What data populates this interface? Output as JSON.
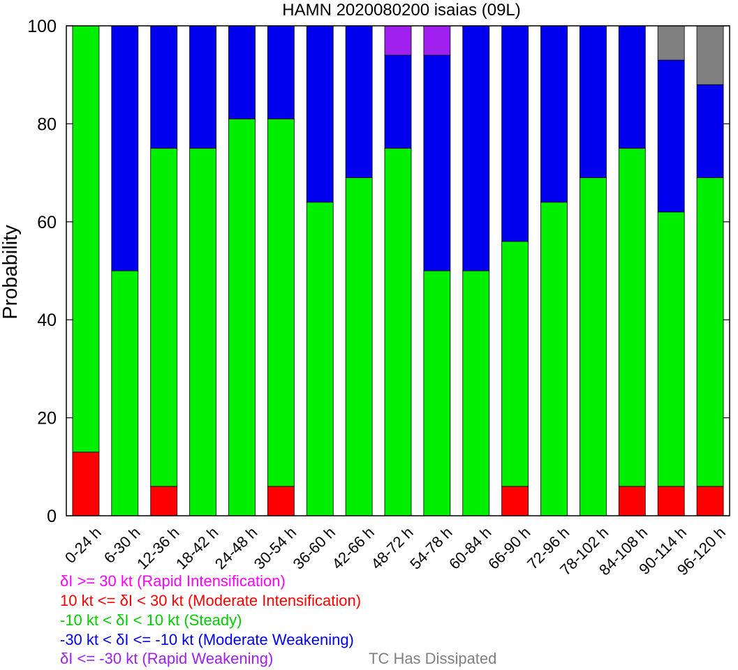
{
  "chart_data": {
    "type": "bar",
    "stacked": true,
    "title": "HAMN 2020080200 isaias (09L)",
    "ylabel": "Probability",
    "ylim": [
      0,
      100
    ],
    "yticks": [
      0,
      20,
      40,
      60,
      80,
      100
    ],
    "categories": [
      "0-24 h",
      "6-30 h",
      "12-36 h",
      "18-42 h",
      "24-48 h",
      "30-54 h",
      "36-60 h",
      "42-66 h",
      "48-72 h",
      "54-78 h",
      "60-84 h",
      "66-90 h",
      "72-96 h",
      "78-102 h",
      "84-108 h",
      "90-114 h",
      "96-120 h"
    ],
    "series": [
      {
        "key": "mod_int",
        "color": "#ff0000",
        "values": [
          13,
          0,
          6,
          0,
          0,
          6,
          0,
          0,
          0,
          0,
          0,
          6,
          0,
          0,
          6,
          6,
          6
        ]
      },
      {
        "key": "steady",
        "color": "#00ee00",
        "values": [
          87,
          50,
          69,
          75,
          81,
          75,
          64,
          69,
          75,
          50,
          50,
          50,
          64,
          69,
          69,
          56,
          63
        ]
      },
      {
        "key": "mod_weak",
        "color": "#0000ee",
        "values": [
          0,
          50,
          25,
          25,
          19,
          19,
          36,
          31,
          19,
          44,
          50,
          44,
          36,
          31,
          25,
          31,
          19
        ]
      },
      {
        "key": "rapid_weak",
        "color": "#a020f0",
        "values": [
          0,
          0,
          0,
          0,
          0,
          0,
          0,
          0,
          6,
          6,
          0,
          0,
          0,
          0,
          0,
          0,
          0
        ]
      },
      {
        "key": "dissipated",
        "color": "#808080",
        "values": [
          0,
          0,
          0,
          0,
          0,
          0,
          0,
          0,
          0,
          0,
          0,
          0,
          0,
          0,
          0,
          7,
          12
        ]
      }
    ]
  },
  "legend": {
    "rapid_int": {
      "text": "δI >= 30 kt (Rapid Intensification)",
      "color": "#ff00ff"
    },
    "mod_int": {
      "text": "10 kt <= δI < 30 kt (Moderate Intensification)",
      "color": "#ff0000"
    },
    "steady": {
      "text": "-10 kt < δI < 10 kt (Steady)",
      "color": "#00cc00"
    },
    "mod_weak": {
      "text": "-30 kt < δI <= -10 kt (Moderate Weakening)",
      "color": "#0000ee"
    },
    "rapid_weak": {
      "text": "δI <= -30 kt (Rapid Weakening)",
      "color": "#a020f0"
    },
    "dissipated": {
      "text": "TC Has Dissipated",
      "color": "#808080"
    }
  }
}
